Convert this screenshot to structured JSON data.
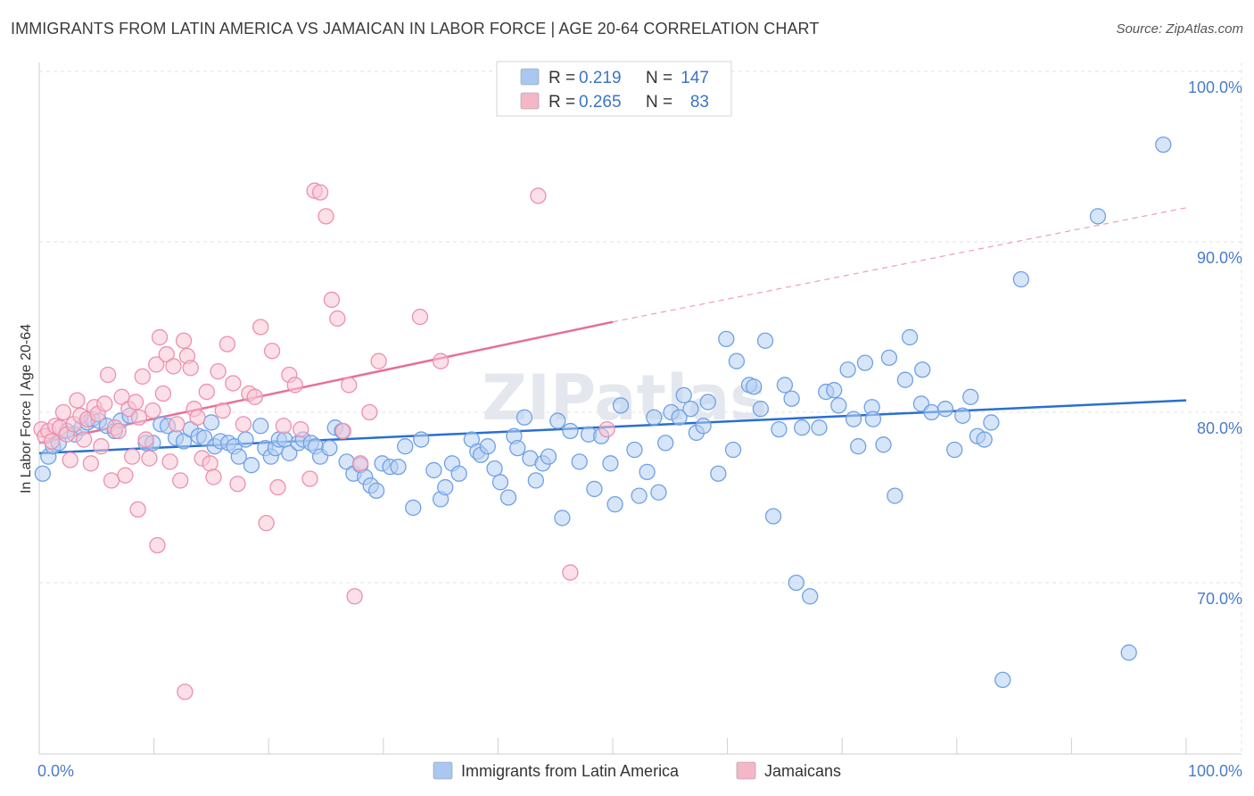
{
  "title": "IMMIGRANTS FROM LATIN AMERICA VS JAMAICAN IN LABOR FORCE | AGE 20-64 CORRELATION CHART",
  "source": "Source: ZipAtlas.com",
  "watermark": "ZIPatlas",
  "legend_top": [
    {
      "r_label": "R =",
      "r_value": "0.219",
      "n_label": "N =",
      "n_value": "147",
      "color": "#a9c7f0"
    },
    {
      "r_label": "R =",
      "r_value": "0.265",
      "n_label": "N =",
      "n_value": "83",
      "color": "#f5b6c8"
    }
  ],
  "chart_data": {
    "type": "scatter",
    "ylabel": "In Labor Force | Age 20-64",
    "x_ticks": [
      "0.0%",
      "100.0%"
    ],
    "y_ticks": [
      "70.0%",
      "80.0%",
      "90.0%",
      "100.0%"
    ],
    "xlim": [
      0,
      100
    ],
    "ylim": [
      60,
      102
    ],
    "grid": true,
    "legend_position": "top-center",
    "series": [
      {
        "name": "Immigrants from Latin America",
        "color": "#6fa1e6",
        "fill": "#b7d0f3",
        "trend": {
          "x0": 0,
          "y0": 77.6,
          "x1": 100,
          "y1": 80.7
        },
        "points": [
          [
            0.3,
            76.4
          ],
          [
            0.8,
            77.4
          ],
          [
            1.2,
            78.0
          ],
          [
            1.7,
            78.2
          ],
          [
            2.4,
            78.9
          ],
          [
            3.1,
            78.7
          ],
          [
            3.7,
            79.1
          ],
          [
            4.2,
            79.4
          ],
          [
            4.6,
            79.6
          ],
          [
            5.2,
            79.5
          ],
          [
            5.9,
            79.2
          ],
          [
            6.6,
            78.9
          ],
          [
            7.1,
            79.5
          ],
          [
            7.9,
            79.8
          ],
          [
            9.3,
            78.2
          ],
          [
            9.9,
            78.2
          ],
          [
            10.6,
            79.3
          ],
          [
            11.2,
            79.2
          ],
          [
            11.9,
            78.5
          ],
          [
            12.6,
            78.3
          ],
          [
            13.2,
            79.0
          ],
          [
            13.9,
            78.6
          ],
          [
            14.4,
            78.5
          ],
          [
            15.0,
            79.4
          ],
          [
            15.3,
            78.0
          ],
          [
            15.8,
            78.3
          ],
          [
            16.5,
            78.2
          ],
          [
            17.0,
            78.0
          ],
          [
            17.4,
            77.4
          ],
          [
            18.0,
            78.4
          ],
          [
            18.5,
            76.9
          ],
          [
            19.3,
            79.2
          ],
          [
            19.7,
            77.9
          ],
          [
            20.2,
            77.4
          ],
          [
            20.6,
            77.9
          ],
          [
            20.9,
            78.4
          ],
          [
            21.4,
            78.4
          ],
          [
            21.8,
            77.6
          ],
          [
            22.6,
            78.2
          ],
          [
            23.0,
            78.4
          ],
          [
            23.7,
            78.2
          ],
          [
            24.1,
            78.0
          ],
          [
            24.5,
            77.4
          ],
          [
            25.3,
            77.9
          ],
          [
            25.8,
            79.1
          ],
          [
            26.4,
            78.9
          ],
          [
            26.8,
            77.1
          ],
          [
            27.4,
            76.4
          ],
          [
            28.0,
            76.9
          ],
          [
            28.4,
            76.2
          ],
          [
            28.9,
            75.7
          ],
          [
            29.4,
            75.4
          ],
          [
            29.9,
            77.0
          ],
          [
            30.6,
            76.8
          ],
          [
            31.3,
            76.8
          ],
          [
            31.9,
            78.0
          ],
          [
            32.6,
            74.4
          ],
          [
            33.3,
            78.4
          ],
          [
            34.4,
            76.6
          ],
          [
            35.0,
            74.9
          ],
          [
            35.4,
            75.6
          ],
          [
            36.0,
            77.0
          ],
          [
            36.6,
            76.4
          ],
          [
            37.7,
            78.4
          ],
          [
            38.2,
            77.7
          ],
          [
            38.5,
            77.5
          ],
          [
            39.1,
            78.0
          ],
          [
            39.7,
            76.7
          ],
          [
            40.2,
            75.9
          ],
          [
            40.9,
            75.0
          ],
          [
            41.4,
            78.6
          ],
          [
            41.7,
            77.9
          ],
          [
            42.3,
            79.7
          ],
          [
            42.8,
            77.3
          ],
          [
            43.3,
            76.0
          ],
          [
            43.9,
            77.0
          ],
          [
            44.4,
            77.4
          ],
          [
            45.2,
            79.5
          ],
          [
            45.6,
            73.8
          ],
          [
            46.3,
            78.9
          ],
          [
            47.1,
            77.1
          ],
          [
            47.9,
            78.7
          ],
          [
            48.4,
            75.5
          ],
          [
            49.0,
            78.6
          ],
          [
            49.8,
            77.0
          ],
          [
            50.2,
            74.6
          ],
          [
            50.7,
            80.4
          ],
          [
            51.9,
            77.8
          ],
          [
            52.3,
            75.1
          ],
          [
            53.0,
            76.5
          ],
          [
            53.6,
            79.7
          ],
          [
            54.0,
            75.3
          ],
          [
            54.6,
            78.2
          ],
          [
            55.1,
            80.0
          ],
          [
            55.8,
            79.7
          ],
          [
            56.2,
            81.0
          ],
          [
            56.8,
            80.2
          ],
          [
            57.3,
            78.8
          ],
          [
            57.9,
            79.2
          ],
          [
            58.3,
            80.6
          ],
          [
            59.2,
            76.4
          ],
          [
            59.9,
            84.3
          ],
          [
            60.5,
            77.8
          ],
          [
            60.8,
            83.0
          ],
          [
            61.9,
            81.6
          ],
          [
            62.3,
            81.5
          ],
          [
            62.9,
            80.2
          ],
          [
            63.3,
            84.2
          ],
          [
            64.0,
            73.9
          ],
          [
            64.5,
            79.0
          ],
          [
            65.0,
            81.6
          ],
          [
            65.6,
            80.8
          ],
          [
            66.0,
            70.0
          ],
          [
            66.5,
            79.1
          ],
          [
            67.2,
            69.2
          ],
          [
            68.0,
            79.1
          ],
          [
            68.6,
            81.2
          ],
          [
            69.3,
            81.3
          ],
          [
            69.7,
            80.4
          ],
          [
            70.5,
            82.5
          ],
          [
            71.0,
            79.6
          ],
          [
            71.4,
            78.0
          ],
          [
            72.0,
            82.9
          ],
          [
            72.6,
            80.3
          ],
          [
            72.7,
            79.6
          ],
          [
            73.6,
            78.1
          ],
          [
            74.1,
            83.2
          ],
          [
            74.6,
            75.1
          ],
          [
            75.5,
            81.9
          ],
          [
            75.9,
            84.4
          ],
          [
            76.9,
            80.5
          ],
          [
            77.0,
            82.5
          ],
          [
            77.8,
            80.0
          ],
          [
            79.0,
            80.2
          ],
          [
            79.8,
            77.8
          ],
          [
            80.5,
            79.8
          ],
          [
            81.2,
            80.9
          ],
          [
            81.8,
            78.6
          ],
          [
            82.4,
            78.4
          ],
          [
            83.0,
            79.4
          ],
          [
            84.0,
            64.3
          ],
          [
            85.6,
            87.8
          ],
          [
            92.3,
            91.5
          ],
          [
            95.0,
            65.9
          ],
          [
            98.0,
            95.7
          ]
        ]
      },
      {
        "name": "Jamaicans",
        "color": "#ee8fae",
        "fill": "#f8c7d5",
        "trend": {
          "x0": 0,
          "y0": 78.2,
          "x1": 50,
          "y1": 85.3
        },
        "trend_ext": {
          "x0": 50,
          "y0": 85.3,
          "x1": 100,
          "y1": 92.0
        },
        "points": [
          [
            0.2,
            79.0
          ],
          [
            0.5,
            78.6
          ],
          [
            0.8,
            78.9
          ],
          [
            1.1,
            78.3
          ],
          [
            1.4,
            79.2
          ],
          [
            1.8,
            79.1
          ],
          [
            2.1,
            80.0
          ],
          [
            2.4,
            78.7
          ],
          [
            2.7,
            77.2
          ],
          [
            3.0,
            79.3
          ],
          [
            3.3,
            80.7
          ],
          [
            3.6,
            79.8
          ],
          [
            3.9,
            78.4
          ],
          [
            4.2,
            79.6
          ],
          [
            4.5,
            77.0
          ],
          [
            4.8,
            80.3
          ],
          [
            5.1,
            79.9
          ],
          [
            5.4,
            78.0
          ],
          [
            5.7,
            80.5
          ],
          [
            6.0,
            82.2
          ],
          [
            6.3,
            76.0
          ],
          [
            6.6,
            79.1
          ],
          [
            6.9,
            78.9
          ],
          [
            7.2,
            80.9
          ],
          [
            7.5,
            76.3
          ],
          [
            7.8,
            80.2
          ],
          [
            8.1,
            77.4
          ],
          [
            8.4,
            80.6
          ],
          [
            8.7,
            79.7
          ],
          [
            9.0,
            82.1
          ],
          [
            9.3,
            78.4
          ],
          [
            9.6,
            77.3
          ],
          [
            9.9,
            80.1
          ],
          [
            10.2,
            82.8
          ],
          [
            10.5,
            84.4
          ],
          [
            10.8,
            81.1
          ],
          [
            11.1,
            83.4
          ],
          [
            11.4,
            77.1
          ],
          [
            11.7,
            82.7
          ],
          [
            12.0,
            79.3
          ],
          [
            12.3,
            76.0
          ],
          [
            12.6,
            84.2
          ],
          [
            12.9,
            83.3
          ],
          [
            13.2,
            82.6
          ],
          [
            13.5,
            80.2
          ],
          [
            13.8,
            79.7
          ],
          [
            14.2,
            77.3
          ],
          [
            14.6,
            81.2
          ],
          [
            14.9,
            77.0
          ],
          [
            15.2,
            76.2
          ],
          [
            15.6,
            82.4
          ],
          [
            16.0,
            80.1
          ],
          [
            16.4,
            84.0
          ],
          [
            16.9,
            81.7
          ],
          [
            17.3,
            75.8
          ],
          [
            17.8,
            79.3
          ],
          [
            18.3,
            81.1
          ],
          [
            18.8,
            80.9
          ],
          [
            19.3,
            85.0
          ],
          [
            19.8,
            73.5
          ],
          [
            20.3,
            83.6
          ],
          [
            20.8,
            75.6
          ],
          [
            21.3,
            79.2
          ],
          [
            21.8,
            82.2
          ],
          [
            22.3,
            81.6
          ],
          [
            22.8,
            79.0
          ],
          [
            23.6,
            76.1
          ],
          [
            24.0,
            93.0
          ],
          [
            24.5,
            92.9
          ],
          [
            25.0,
            91.5
          ],
          [
            25.5,
            86.6
          ],
          [
            26.0,
            85.5
          ],
          [
            26.5,
            78.9
          ],
          [
            27.0,
            81.6
          ],
          [
            27.5,
            69.2
          ],
          [
            28.0,
            77.0
          ],
          [
            28.8,
            80.0
          ],
          [
            29.6,
            83.0
          ],
          [
            33.2,
            85.6
          ],
          [
            35.0,
            83.0
          ],
          [
            43.5,
            92.7
          ],
          [
            46.3,
            70.6
          ],
          [
            49.5,
            79.0
          ],
          [
            10.3,
            72.2
          ],
          [
            8.6,
            74.3
          ],
          [
            12.7,
            63.6
          ]
        ]
      }
    ]
  },
  "legend_bottom": [
    {
      "label": "Immigrants from Latin America",
      "color": "#a9c7f0"
    },
    {
      "label": "Jamaicans",
      "color": "#f5b6c8"
    }
  ]
}
